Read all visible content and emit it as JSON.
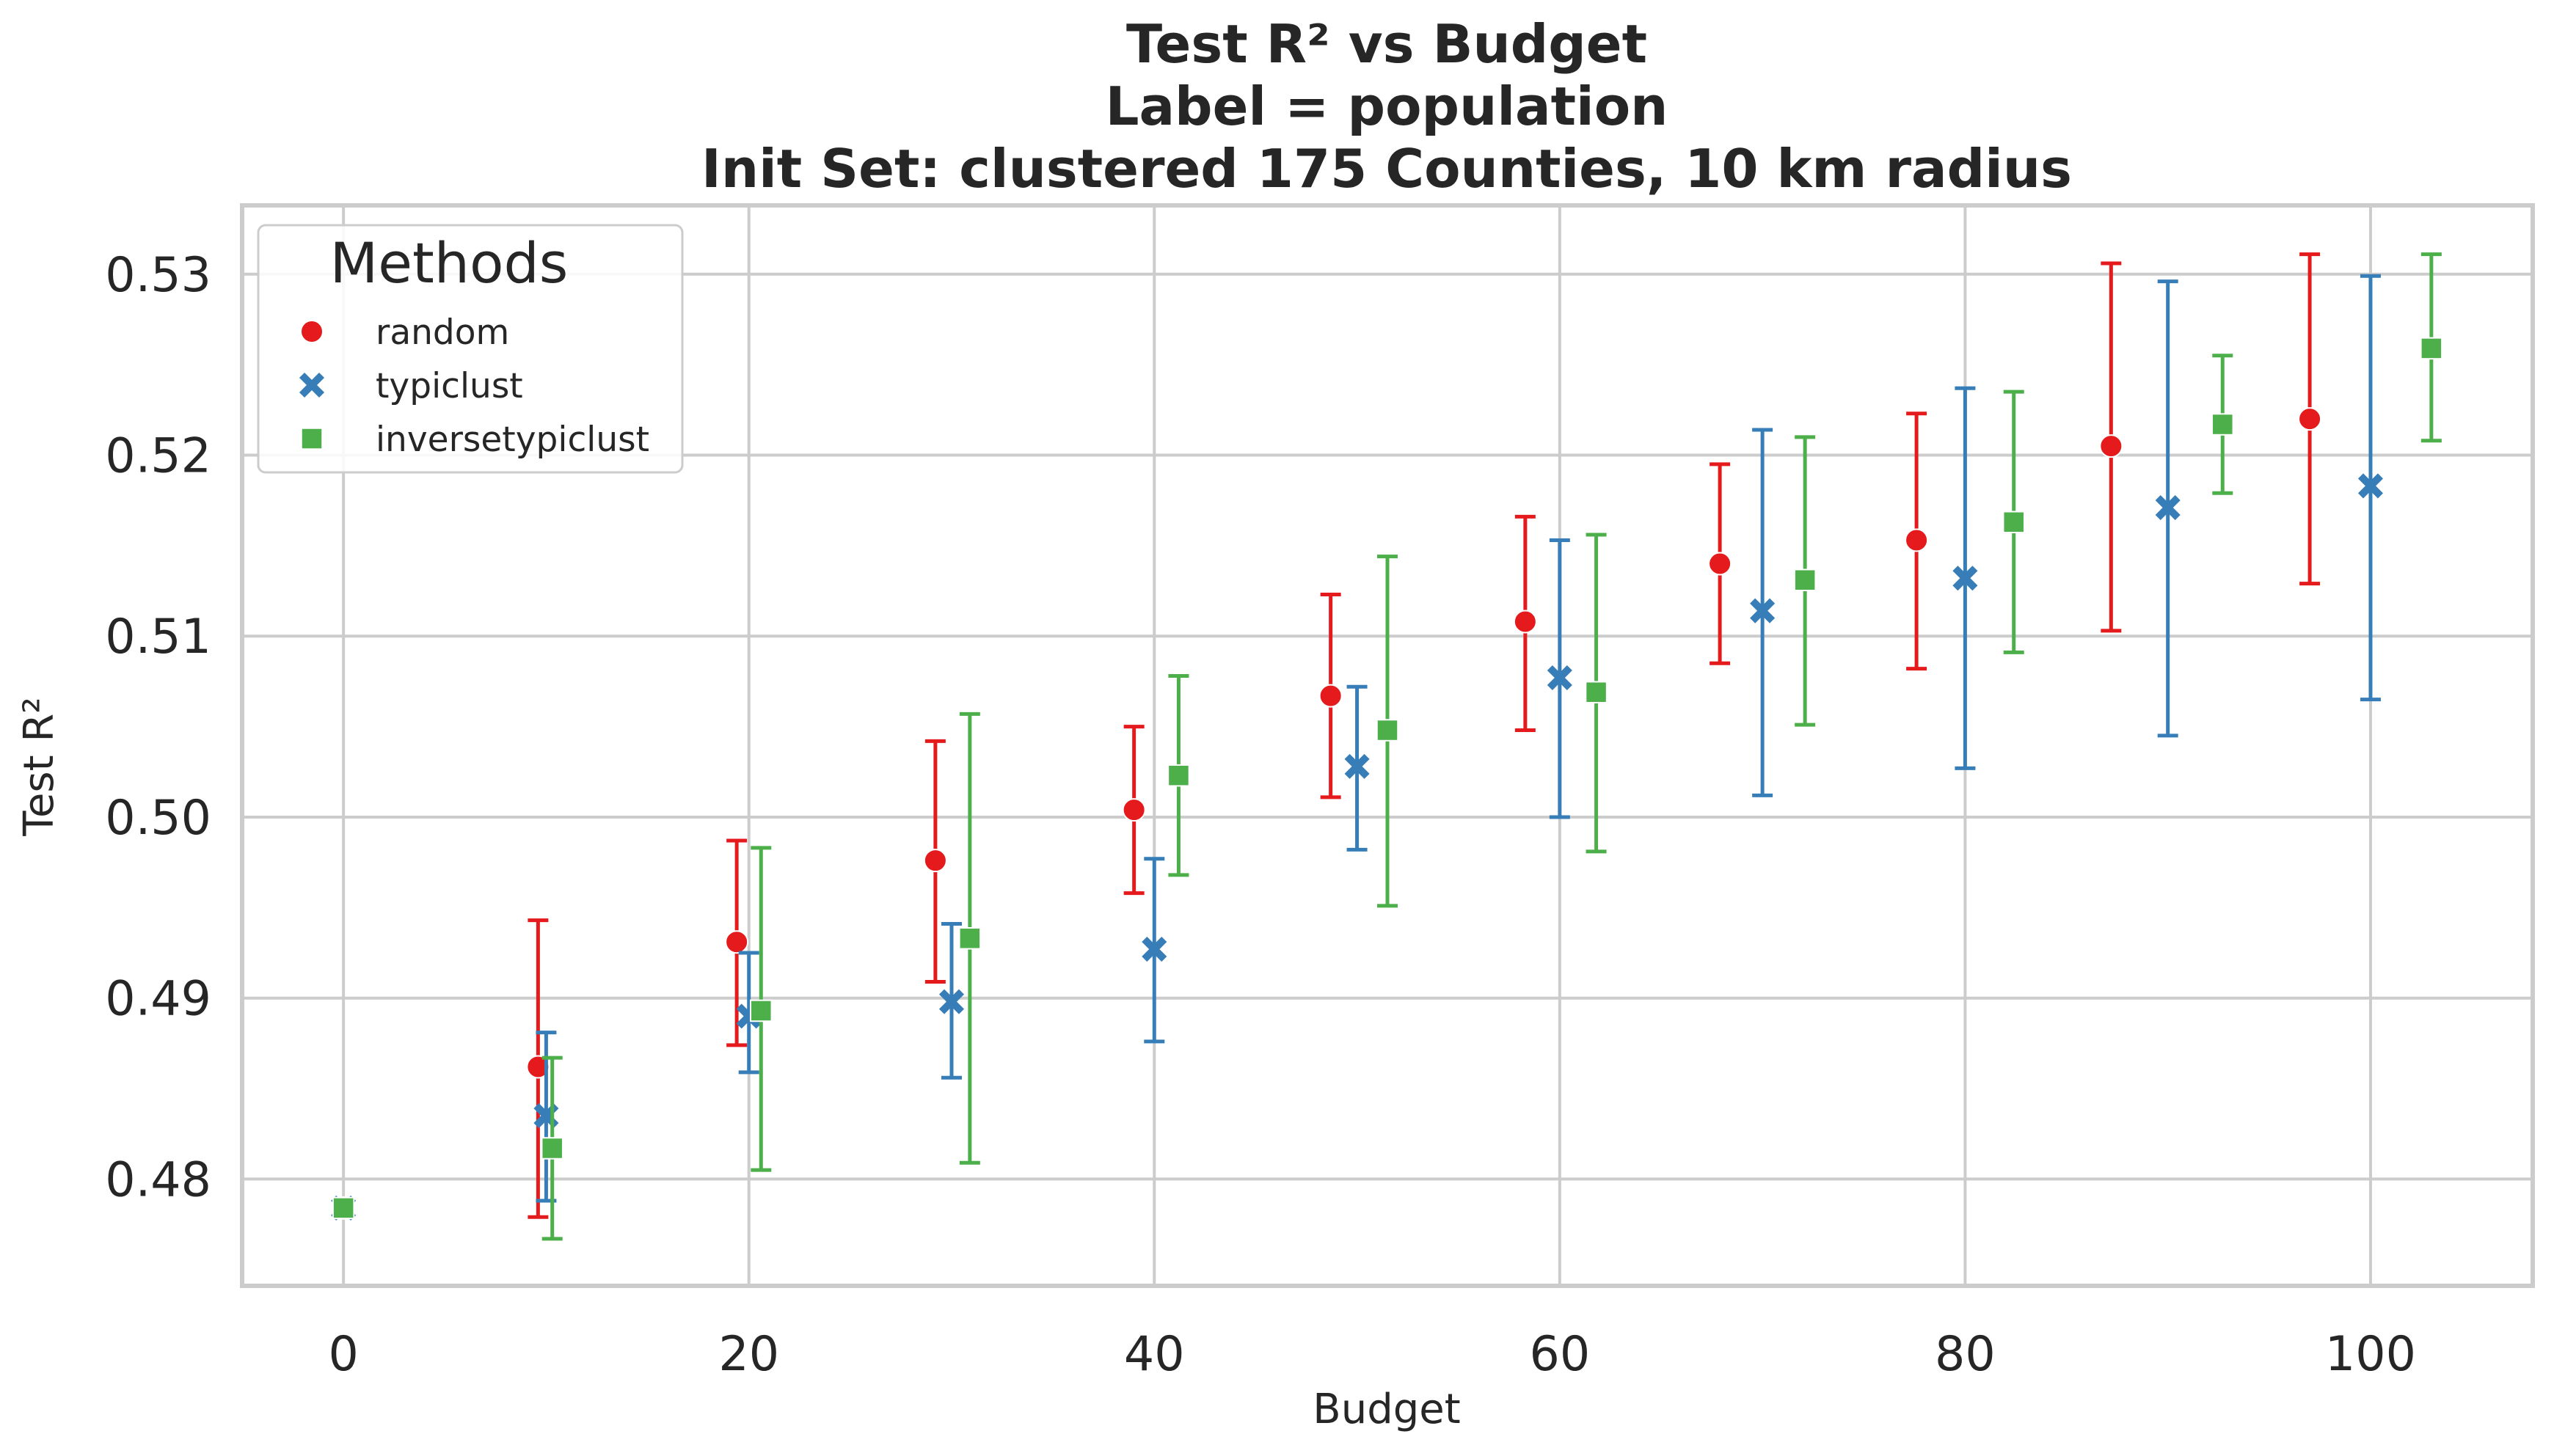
{
  "chart_data": {
    "type": "scatter",
    "title_lines": [
      "Test R² vs Budget",
      "Label = population",
      "Init Set: clustered 175 Counties, 10 km radius"
    ],
    "xlabel": "Budget",
    "ylabel": "Test R²",
    "xlim": [
      -5,
      108
    ],
    "ylim": [
      0.4741,
      0.5338
    ],
    "xticks": [
      0,
      20,
      40,
      60,
      80,
      100
    ],
    "yticks": [
      0.48,
      0.49,
      0.5,
      0.51,
      0.52,
      0.53
    ],
    "xtick_labels": [
      "0",
      "20",
      "40",
      "60",
      "80",
      "100"
    ],
    "ytick_labels": [
      "0.48",
      "0.49",
      "0.50",
      "0.51",
      "0.52",
      "0.53"
    ],
    "grid": true,
    "legend": {
      "title": "Methods",
      "position": "upper-left"
    },
    "series": [
      {
        "name": "random",
        "marker": "circle",
        "color": "#e41a1c",
        "x": [
          0,
          9.6,
          19.4,
          29.2,
          39.0,
          48.7,
          58.3,
          67.9,
          77.6,
          87.2,
          97.0
        ],
        "y": [
          0.4784,
          0.4862,
          0.4931,
          0.4976,
          0.5004,
          0.5067,
          0.5108,
          0.514,
          0.5153,
          0.5205,
          0.522
        ],
        "err_low": [
          0.4784,
          0.4779,
          0.4874,
          0.4909,
          0.4958,
          0.5011,
          0.5048,
          0.5085,
          0.5082,
          0.5103,
          0.5129
        ],
        "err_high": [
          0.4784,
          0.4943,
          0.4987,
          0.5042,
          0.505,
          0.5123,
          0.5166,
          0.5195,
          0.5223,
          0.5306,
          0.5311
        ]
      },
      {
        "name": "typiclust",
        "marker": "x",
        "color": "#377eb8",
        "x": [
          0,
          10,
          20,
          30,
          40,
          50,
          60,
          70,
          80,
          90,
          100
        ],
        "y": [
          0.4784,
          0.4835,
          0.489,
          0.4898,
          0.4927,
          0.5028,
          0.5077,
          0.5114,
          0.5132,
          0.5171,
          0.5183
        ],
        "err_low": [
          0.4784,
          0.4788,
          0.4859,
          0.4856,
          0.4876,
          0.4982,
          0.5,
          0.5012,
          0.5027,
          0.5045,
          0.5065
        ],
        "err_high": [
          0.4784,
          0.4881,
          0.4925,
          0.4941,
          0.4977,
          0.5072,
          0.5153,
          0.5214,
          0.5237,
          0.5296,
          0.5299
        ]
      },
      {
        "name": "inversetypiclust",
        "marker": "square",
        "color": "#4daf4a",
        "x": [
          0,
          10.3,
          20.6,
          30.9,
          41.2,
          51.5,
          61.8,
          72.1,
          82.4,
          92.7,
          103.0
        ],
        "y": [
          0.4784,
          0.4817,
          0.4893,
          0.4933,
          0.5023,
          0.5048,
          0.5069,
          0.5131,
          0.5163,
          0.5217,
          0.5259
        ],
        "err_low": [
          0.4784,
          0.4767,
          0.4805,
          0.4809,
          0.4968,
          0.4951,
          0.4981,
          0.5051,
          0.5091,
          0.5179,
          0.5208
        ],
        "err_high": [
          0.4784,
          0.4867,
          0.4983,
          0.5057,
          0.5078,
          0.5144,
          0.5156,
          0.521,
          0.5235,
          0.5255,
          0.5311
        ]
      }
    ]
  }
}
